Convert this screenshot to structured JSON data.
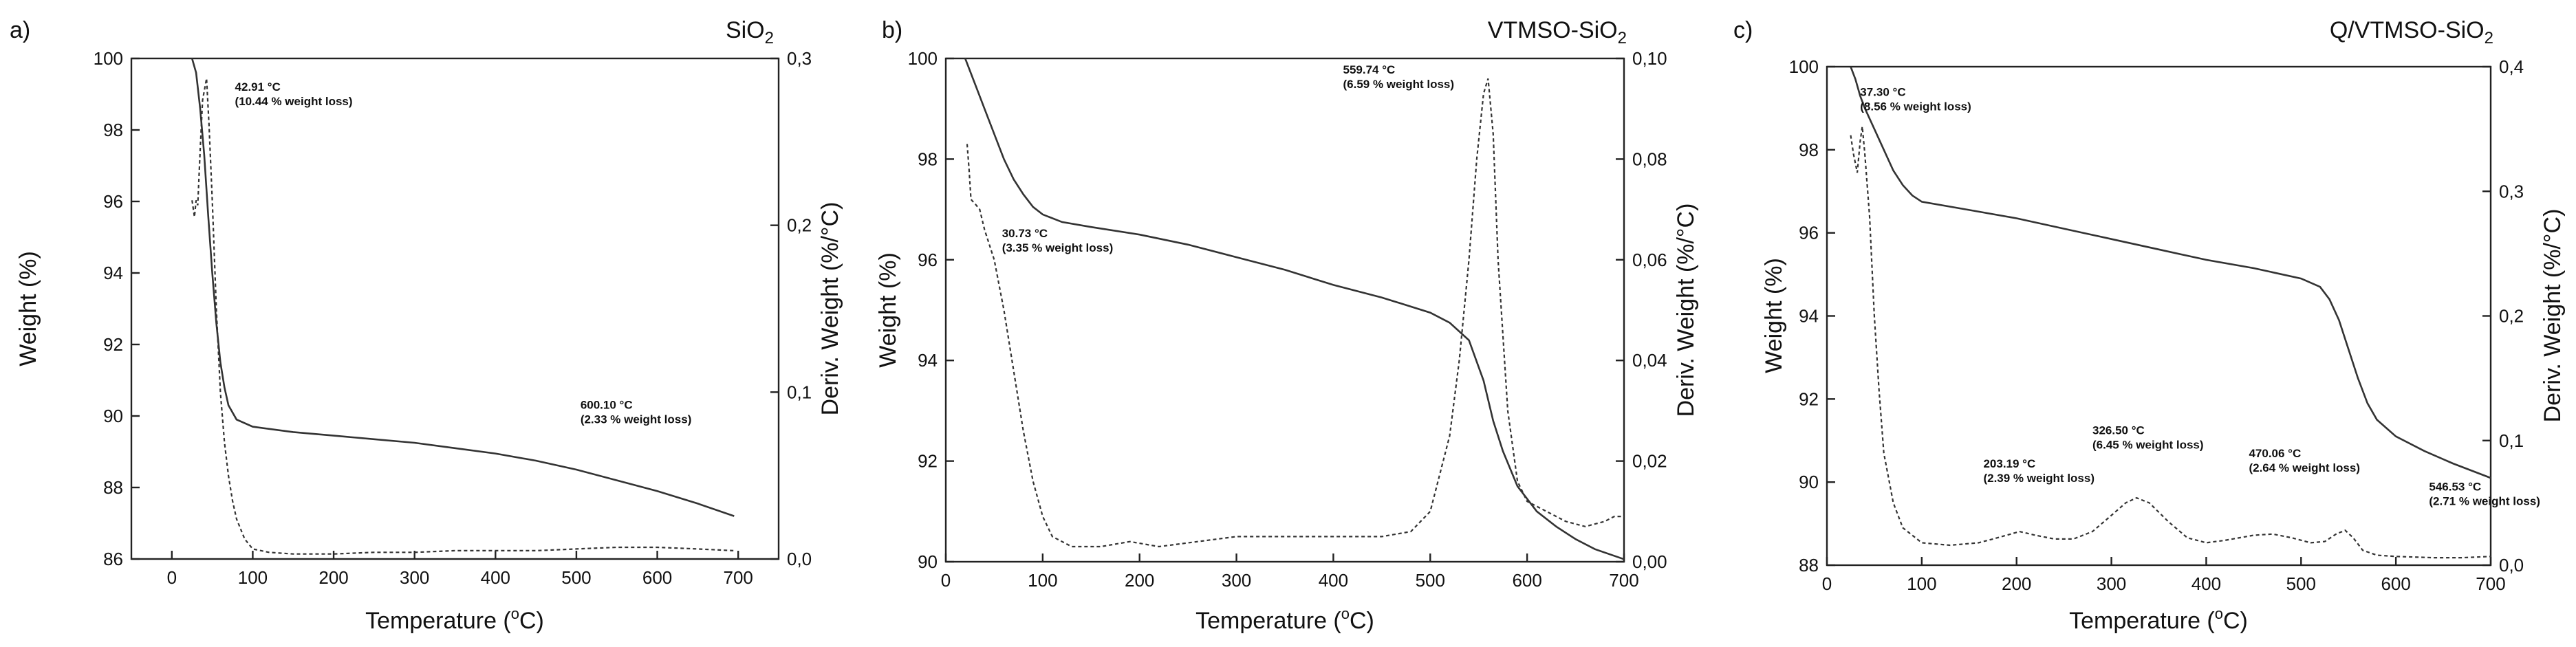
{
  "chart_data": [
    {
      "type": "line",
      "panel_label": "a)",
      "title": "SiO",
      "title_sub": "2",
      "xlabel": "Temperature (",
      "xlabel_unit": "o",
      "xlabel_end": "C)",
      "ylabel": "Weight (%)",
      "ylabel_right": "Deriv. Weight (%/°C)",
      "xlim": [
        -50,
        750
      ],
      "ylim": [
        86,
        100
      ],
      "ylim_right": [
        0,
        0.3
      ],
      "xticks": [
        "0",
        "100",
        "200",
        "300",
        "400",
        "500",
        "600",
        "700"
      ],
      "yticks": [
        "86",
        "88",
        "90",
        "92",
        "94",
        "96",
        "98",
        "100"
      ],
      "yticks_right": [
        "0,0",
        "0,1",
        "0,2",
        "0,3"
      ],
      "series": [
        {
          "name": "Weight",
          "axis": "left",
          "style": "solid",
          "points": [
            [
              25,
              100.0
            ],
            [
              30,
              99.6
            ],
            [
              35,
              98.6
            ],
            [
              40,
              97.3
            ],
            [
              45,
              95.6
            ],
            [
              50,
              94.0
            ],
            [
              55,
              92.6
            ],
            [
              60,
              91.5
            ],
            [
              65,
              90.8
            ],
            [
              70,
              90.3
            ],
            [
              80,
              89.9
            ],
            [
              100,
              89.7
            ],
            [
              150,
              89.55
            ],
            [
              200,
              89.45
            ],
            [
              250,
              89.35
            ],
            [
              300,
              89.25
            ],
            [
              350,
              89.1
            ],
            [
              400,
              88.95
            ],
            [
              450,
              88.75
            ],
            [
              500,
              88.5
            ],
            [
              550,
              88.2
            ],
            [
              600,
              87.9
            ],
            [
              650,
              87.55
            ],
            [
              695,
              87.2
            ]
          ]
        },
        {
          "name": "Deriv. Weight",
          "axis": "right",
          "style": "dashed",
          "points": [
            [
              25,
              0.215
            ],
            [
              28,
              0.205
            ],
            [
              30,
              0.215
            ],
            [
              32,
              0.212
            ],
            [
              35,
              0.245
            ],
            [
              38,
              0.275
            ],
            [
              42.91,
              0.288
            ],
            [
              46,
              0.26
            ],
            [
              50,
              0.215
            ],
            [
              55,
              0.15
            ],
            [
              60,
              0.1
            ],
            [
              65,
              0.07
            ],
            [
              70,
              0.05
            ],
            [
              75,
              0.035
            ],
            [
              80,
              0.024
            ],
            [
              90,
              0.012
            ],
            [
              100,
              0.006
            ],
            [
              120,
              0.004
            ],
            [
              150,
              0.003
            ],
            [
              200,
              0.003
            ],
            [
              250,
              0.004
            ],
            [
              300,
              0.004
            ],
            [
              350,
              0.005
            ],
            [
              400,
              0.005
            ],
            [
              450,
              0.005
            ],
            [
              500,
              0.006
            ],
            [
              550,
              0.007
            ],
            [
              600,
              0.007
            ],
            [
              650,
              0.006
            ],
            [
              695,
              0.005
            ]
          ]
        }
      ],
      "annotations": [
        {
          "line1": "42.91 °C",
          "line2": "(10.44 % weight loss)",
          "x": 78,
          "y": 99.1
        },
        {
          "line1": "600.10 °C",
          "line2": "(2.33 % weight loss)",
          "x": 505,
          "y": 90.2
        }
      ]
    },
    {
      "type": "line",
      "panel_label": "b)",
      "title": "VTMSO-SiO",
      "title_sub": "2",
      "xlabel": "Temperature (",
      "xlabel_unit": "o",
      "xlabel_end": "C)",
      "ylabel": "Weight (%)",
      "ylabel_right": "Deriv. Weight (%/°C)",
      "xlim": [
        0,
        700
      ],
      "ylim": [
        90,
        100
      ],
      "ylim_right": [
        0,
        0.1
      ],
      "xticks": [
        "0",
        "100",
        "200",
        "300",
        "400",
        "500",
        "600",
        "700"
      ],
      "yticks": [
        "90",
        "92",
        "94",
        "96",
        "98",
        "100"
      ],
      "yticks_right": [
        "0,00",
        "0,02",
        "0,04",
        "0,06",
        "0,08",
        "0,10"
      ],
      "series": [
        {
          "name": "Weight",
          "axis": "left",
          "style": "solid",
          "points": [
            [
              20,
              100.0
            ],
            [
              30,
              99.5
            ],
            [
              40,
              99.0
            ],
            [
              50,
              98.5
            ],
            [
              60,
              98.0
            ],
            [
              70,
              97.6
            ],
            [
              80,
              97.3
            ],
            [
              90,
              97.05
            ],
            [
              100,
              96.9
            ],
            [
              120,
              96.75
            ],
            [
              150,
              96.65
            ],
            [
              200,
              96.5
            ],
            [
              250,
              96.3
            ],
            [
              300,
              96.05
            ],
            [
              350,
              95.8
            ],
            [
              400,
              95.5
            ],
            [
              450,
              95.25
            ],
            [
              500,
              94.95
            ],
            [
              520,
              94.75
            ],
            [
              540,
              94.4
            ],
            [
              555,
              93.6
            ],
            [
              565,
              92.8
            ],
            [
              575,
              92.2
            ],
            [
              590,
              91.5
            ],
            [
              610,
              91.0
            ],
            [
              630,
              90.7
            ],
            [
              650,
              90.45
            ],
            [
              670,
              90.25
            ],
            [
              700,
              90.05
            ]
          ]
        },
        {
          "name": "Deriv. Weight",
          "axis": "right",
          "style": "dashed",
          "points": [
            [
              22,
              0.083
            ],
            [
              24,
              0.078
            ],
            [
              26,
              0.072
            ],
            [
              30.73,
              0.071
            ],
            [
              35,
              0.07
            ],
            [
              40,
              0.066
            ],
            [
              50,
              0.06
            ],
            [
              60,
              0.05
            ],
            [
              70,
              0.038
            ],
            [
              80,
              0.026
            ],
            [
              90,
              0.016
            ],
            [
              100,
              0.009
            ],
            [
              110,
              0.005
            ],
            [
              130,
              0.003
            ],
            [
              160,
              0.003
            ],
            [
              190,
              0.004
            ],
            [
              220,
              0.003
            ],
            [
              260,
              0.004
            ],
            [
              300,
              0.005
            ],
            [
              350,
              0.005
            ],
            [
              400,
              0.005
            ],
            [
              450,
              0.005
            ],
            [
              480,
              0.006
            ],
            [
              500,
              0.01
            ],
            [
              520,
              0.025
            ],
            [
              530,
              0.04
            ],
            [
              540,
              0.06
            ],
            [
              548,
              0.08
            ],
            [
              555,
              0.093
            ],
            [
              559.74,
              0.096
            ],
            [
              565,
              0.085
            ],
            [
              570,
              0.06
            ],
            [
              580,
              0.03
            ],
            [
              590,
              0.016
            ],
            [
              600,
              0.012
            ],
            [
              620,
              0.01
            ],
            [
              640,
              0.008
            ],
            [
              660,
              0.007
            ],
            [
              680,
              0.008
            ],
            [
              690,
              0.009
            ],
            [
              700,
              0.009
            ]
          ]
        }
      ],
      "annotations": [
        {
          "line1": "559.74 °C",
          "line2": "(6.59 % weight loss)",
          "x": 410,
          "y": 99.7
        },
        {
          "line1": "30.73 °C",
          "line2": "(3.35 % weight loss)",
          "x": 58,
          "y": 96.45
        }
      ]
    },
    {
      "type": "line",
      "panel_label": "c)",
      "title": "Q/VTMSO-SiO",
      "title_sub": "2",
      "xlabel": "Temperature (",
      "xlabel_unit": "o",
      "xlabel_end": "C)",
      "ylabel": "Weight (%)",
      "ylabel_right": "Deriv. Weight (%/°C)",
      "xlim": [
        0,
        700
      ],
      "ylim": [
        88,
        100
      ],
      "ylim_right": [
        0,
        0.4
      ],
      "xticks": [
        "0",
        "100",
        "200",
        "300",
        "400",
        "500",
        "600",
        "700"
      ],
      "yticks": [
        "88",
        "90",
        "92",
        "94",
        "96",
        "98",
        "100"
      ],
      "yticks_right": [
        "0,0",
        "0,1",
        "0,2",
        "0,3",
        "0,4"
      ],
      "series": [
        {
          "name": "Weight",
          "axis": "left",
          "style": "solid",
          "points": [
            [
              25,
              100.0
            ],
            [
              30,
              99.7
            ],
            [
              35,
              99.3
            ],
            [
              40,
              99.0
            ],
            [
              50,
              98.5
            ],
            [
              60,
              98.0
            ],
            [
              70,
              97.5
            ],
            [
              80,
              97.15
            ],
            [
              90,
              96.9
            ],
            [
              100,
              96.75
            ],
            [
              150,
              96.55
            ],
            [
              200,
              96.35
            ],
            [
              250,
              96.1
            ],
            [
              300,
              95.85
            ],
            [
              350,
              95.6
            ],
            [
              400,
              95.35
            ],
            [
              450,
              95.15
            ],
            [
              500,
              94.9
            ],
            [
              520,
              94.7
            ],
            [
              530,
              94.4
            ],
            [
              540,
              93.9
            ],
            [
              550,
              93.2
            ],
            [
              560,
              92.5
            ],
            [
              570,
              91.9
            ],
            [
              580,
              91.5
            ],
            [
              600,
              91.1
            ],
            [
              630,
              90.75
            ],
            [
              660,
              90.45
            ],
            [
              700,
              90.1
            ]
          ]
        },
        {
          "name": "Deriv. Weight",
          "axis": "right",
          "style": "dashed",
          "points": [
            [
              25,
              0.345
            ],
            [
              28,
              0.33
            ],
            [
              32,
              0.315
            ],
            [
              35,
              0.34
            ],
            [
              37.3,
              0.352
            ],
            [
              40,
              0.33
            ],
            [
              45,
              0.28
            ],
            [
              50,
              0.2
            ],
            [
              55,
              0.14
            ],
            [
              60,
              0.09
            ],
            [
              70,
              0.05
            ],
            [
              80,
              0.03
            ],
            [
              100,
              0.018
            ],
            [
              130,
              0.016
            ],
            [
              160,
              0.018
            ],
            [
              180,
              0.022
            ],
            [
              203.19,
              0.027
            ],
            [
              220,
              0.024
            ],
            [
              240,
              0.021
            ],
            [
              260,
              0.021
            ],
            [
              280,
              0.027
            ],
            [
              300,
              0.04
            ],
            [
              315,
              0.05
            ],
            [
              326.5,
              0.054
            ],
            [
              340,
              0.05
            ],
            [
              360,
              0.035
            ],
            [
              380,
              0.022
            ],
            [
              400,
              0.018
            ],
            [
              420,
              0.02
            ],
            [
              450,
              0.024
            ],
            [
              470.06,
              0.025
            ],
            [
              490,
              0.022
            ],
            [
              510,
              0.018
            ],
            [
              525,
              0.019
            ],
            [
              537,
              0.025
            ],
            [
              546.53,
              0.028
            ],
            [
              555,
              0.022
            ],
            [
              565,
              0.012
            ],
            [
              580,
              0.008
            ],
            [
              600,
              0.007
            ],
            [
              640,
              0.006
            ],
            [
              670,
              0.006
            ],
            [
              700,
              0.007
            ]
          ]
        }
      ],
      "annotations": [
        {
          "line1": "37.30 °C",
          "line2": "(8.56 % weight loss)",
          "x": 35,
          "y": 99.3
        },
        {
          "line1": "203.19 °C",
          "line2": "(2.39 % weight loss)",
          "x": 165,
          "y": 90.35
        },
        {
          "line1": "326.50 °C",
          "line2": "(6.45 % weight loss)",
          "x": 280,
          "y": 91.15
        },
        {
          "line1": "470.06 °C",
          "line2": "(2.64 % weight loss)",
          "x": 445,
          "y": 90.6
        },
        {
          "line1": "546.53 °C",
          "line2": "(2.71 % weight loss)",
          "x": 635,
          "y": 89.8
        }
      ]
    }
  ]
}
